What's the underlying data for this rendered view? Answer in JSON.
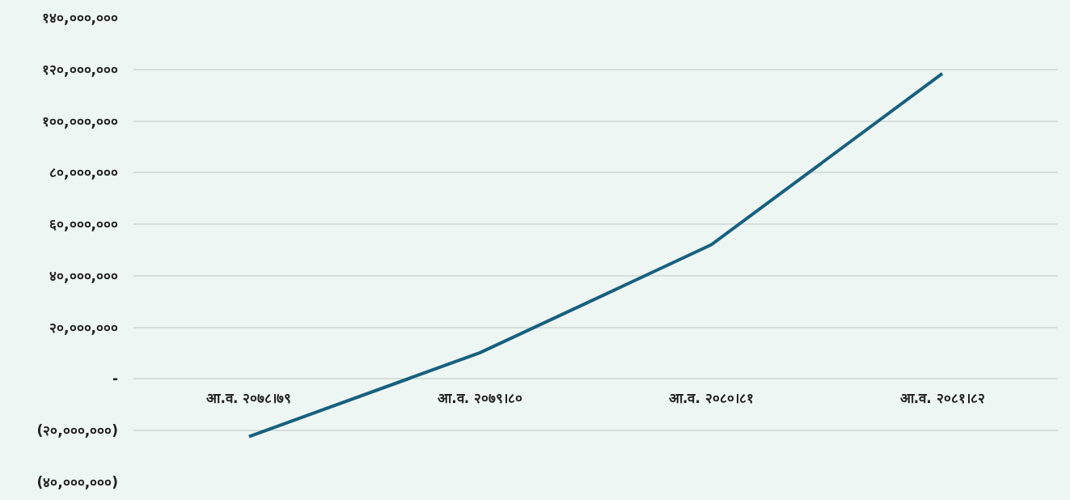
{
  "chart_data": {
    "type": "line",
    "categories": [
      "आ.व. २०७८।७९",
      "आ.व. २०७९।८०",
      "आ.व. २०८०।८१",
      "आ.व. २०८१।८२"
    ],
    "series": [
      {
        "color": "#17607f",
        "values": [
          -22300000,
          10200000,
          52000000,
          118400000
        ]
      }
    ],
    "ylim": [
      -40000000,
      140000000
    ],
    "yticks": [
      {
        "value": -40000000,
        "label": "(४०,०००,०००)"
      },
      {
        "value": -20000000,
        "label": "(२०,०००,०००)"
      },
      {
        "value": 0,
        "label": "-"
      },
      {
        "value": 20000000,
        "label": "२०,०००,०००"
      },
      {
        "value": 40000000,
        "label": "४०,०००,०००"
      },
      {
        "value": 60000000,
        "label": "६०,०००,०००"
      },
      {
        "value": 80000000,
        "label": "८०,०००,०००"
      },
      {
        "value": 100000000,
        "label": "१००,०००,०००"
      },
      {
        "value": 120000000,
        "label": "१२०,०००,०००"
      },
      {
        "value": 140000000,
        "label": "१४०,०००,०००"
      }
    ],
    "grid": "y",
    "marker": "none",
    "line_style": "solid"
  }
}
